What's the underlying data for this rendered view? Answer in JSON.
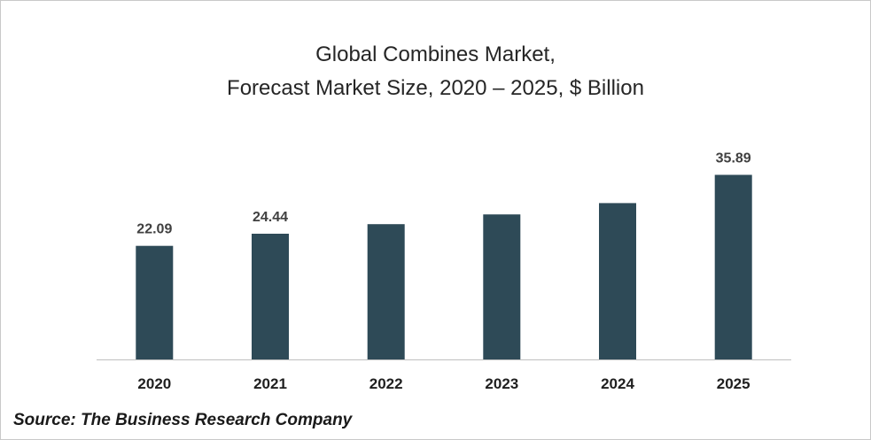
{
  "chart_data": {
    "type": "bar",
    "title_lines": [
      "Global Combines Market,",
      "Forecast Market Size, 2020 – 2025, $ Billion"
    ],
    "categories": [
      "2020",
      "2021",
      "2022",
      "2023",
      "2024",
      "2025"
    ],
    "values": [
      22.09,
      24.44,
      26.3,
      28.2,
      30.4,
      35.89
    ],
    "data_labels": [
      "22.09",
      "24.44",
      "",
      "",
      "",
      "35.89"
    ],
    "ylim": [
      0,
      40
    ],
    "grid": false,
    "bar_color": "#2e4a57",
    "label_color": "#404040"
  },
  "source": "Source: The Business Research Company"
}
